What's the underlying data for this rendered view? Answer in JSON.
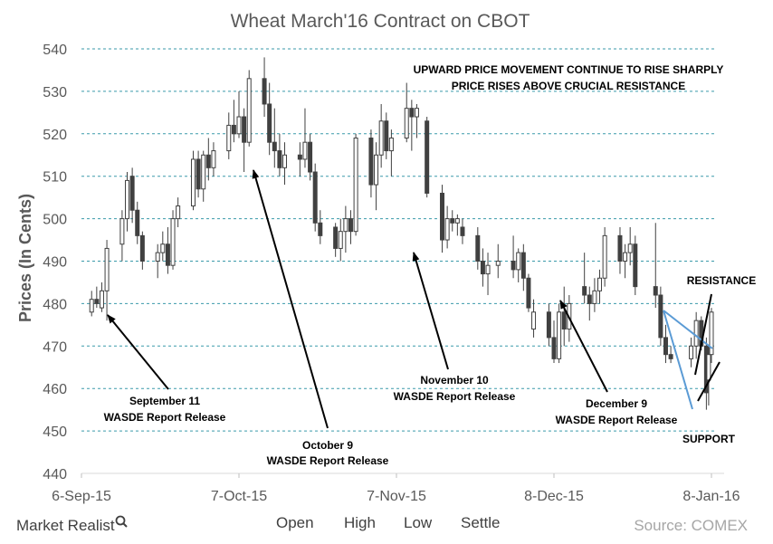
{
  "colors": {
    "grid": "#3a9aaa",
    "candle": "#404040",
    "trendline": "#5b9bd5",
    "arrow": "#000000",
    "axis_text": "#595959",
    "source_text": "#a6a6a6"
  },
  "footer": {
    "brand": "Market Realist",
    "brand_icon": "magnifier-icon",
    "source": "Source: COMEX"
  },
  "chart_data": {
    "type": "candlestick",
    "title": "Wheat March'16 Contract on CBOT",
    "xlabel": "",
    "ylabel": "Prices (In Cents)",
    "ylim": [
      440,
      540
    ],
    "yticks": [
      440,
      450,
      460,
      470,
      480,
      490,
      500,
      510,
      520,
      530,
      540
    ],
    "xlim": [
      "2015-09-06",
      "2016-01-08"
    ],
    "xticks": [
      {
        "date": "2015-09-06",
        "label": "6-Sep-15"
      },
      {
        "date": "2015-10-07",
        "label": "7-Oct-15"
      },
      {
        "date": "2015-11-07",
        "label": "7-Nov-15"
      },
      {
        "date": "2015-12-08",
        "label": "8-Dec-15"
      },
      {
        "date": "2016-01-08",
        "label": "8-Jan-16"
      }
    ],
    "grid": true,
    "legend": [
      "Open",
      "High",
      "Low",
      "Settle"
    ],
    "legend_position": "bottom",
    "candles": [
      {
        "date": "2015-09-08",
        "open": 478,
        "high": 483,
        "low": 477,
        "close": 481
      },
      {
        "date": "2015-09-09",
        "open": 481,
        "high": 484,
        "low": 479,
        "close": 480
      },
      {
        "date": "2015-09-10",
        "open": 479,
        "high": 485,
        "low": 478,
        "close": 483
      },
      {
        "date": "2015-09-11",
        "open": 483,
        "high": 495,
        "low": 476,
        "close": 493
      },
      {
        "date": "2015-09-14",
        "open": 494,
        "high": 502,
        "low": 490,
        "close": 500
      },
      {
        "date": "2015-09-15",
        "open": 500,
        "high": 511,
        "low": 497,
        "close": 509
      },
      {
        "date": "2015-09-16",
        "open": 510,
        "high": 512,
        "low": 499,
        "close": 502
      },
      {
        "date": "2015-09-17",
        "open": 502,
        "high": 504,
        "low": 494,
        "close": 496
      },
      {
        "date": "2015-09-18",
        "open": 496,
        "high": 497,
        "low": 488,
        "close": 490
      },
      {
        "date": "2015-09-21",
        "open": 490,
        "high": 494,
        "low": 486,
        "close": 492
      },
      {
        "date": "2015-09-22",
        "open": 492,
        "high": 497,
        "low": 490,
        "close": 494
      },
      {
        "date": "2015-09-23",
        "open": 494,
        "high": 498,
        "low": 487,
        "close": 489
      },
      {
        "date": "2015-09-24",
        "open": 489,
        "high": 502,
        "low": 488,
        "close": 500
      },
      {
        "date": "2015-09-25",
        "open": 500,
        "high": 505,
        "low": 498,
        "close": 503
      },
      {
        "date": "2015-09-28",
        "open": 503,
        "high": 516,
        "low": 502,
        "close": 514
      },
      {
        "date": "2015-09-29",
        "open": 514,
        "high": 516,
        "low": 505,
        "close": 507
      },
      {
        "date": "2015-09-30",
        "open": 507,
        "high": 516,
        "low": 504,
        "close": 515
      },
      {
        "date": "2015-10-01",
        "open": 515,
        "high": 519,
        "low": 509,
        "close": 512
      },
      {
        "date": "2015-10-02",
        "open": 512,
        "high": 518,
        "low": 510,
        "close": 516
      },
      {
        "date": "2015-10-05",
        "open": 516,
        "high": 525,
        "low": 514,
        "close": 522
      },
      {
        "date": "2015-10-06",
        "open": 522,
        "high": 528,
        "low": 518,
        "close": 520
      },
      {
        "date": "2015-10-07",
        "open": 520,
        "high": 530,
        "low": 519,
        "close": 524
      },
      {
        "date": "2015-10-08",
        "open": 524,
        "high": 526,
        "low": 511,
        "close": 518
      },
      {
        "date": "2015-10-09",
        "open": 518,
        "high": 535,
        "low": 517,
        "close": 533
      },
      {
        "date": "2015-10-12",
        "open": 533,
        "high": 538,
        "low": 524,
        "close": 527
      },
      {
        "date": "2015-10-13",
        "open": 527,
        "high": 532,
        "low": 515,
        "close": 518
      },
      {
        "date": "2015-10-14",
        "open": 518,
        "high": 526,
        "low": 512,
        "close": 516
      },
      {
        "date": "2015-10-15",
        "open": 516,
        "high": 520,
        "low": 510,
        "close": 512
      },
      {
        "date": "2015-10-16",
        "open": 512,
        "high": 518,
        "low": 508,
        "close": 515
      },
      {
        "date": "2015-10-19",
        "open": 515,
        "high": 518,
        "low": 510,
        "close": 514
      },
      {
        "date": "2015-10-20",
        "open": 514,
        "high": 526,
        "low": 512,
        "close": 518
      },
      {
        "date": "2015-10-21",
        "open": 518,
        "high": 520,
        "low": 509,
        "close": 511
      },
      {
        "date": "2015-10-22",
        "open": 511,
        "high": 513,
        "low": 497,
        "close": 499
      },
      {
        "date": "2015-10-23",
        "open": 499,
        "high": 502,
        "low": 494,
        "close": 496
      },
      {
        "date": "2015-10-26",
        "open": 498,
        "high": 499,
        "low": 491,
        "close": 493
      },
      {
        "date": "2015-10-27",
        "open": 493,
        "high": 500,
        "low": 490,
        "close": 497
      },
      {
        "date": "2015-10-28",
        "open": 497,
        "high": 503,
        "low": 492,
        "close": 500
      },
      {
        "date": "2015-10-29",
        "open": 500,
        "high": 502,
        "low": 494,
        "close": 497
      },
      {
        "date": "2015-10-30",
        "open": 497,
        "high": 520,
        "low": 496,
        "close": 519
      },
      {
        "date": "2015-11-02",
        "open": 519,
        "high": 521,
        "low": 505,
        "close": 508
      },
      {
        "date": "2015-11-03",
        "open": 508,
        "high": 518,
        "low": 502,
        "close": 515
      },
      {
        "date": "2015-11-04",
        "open": 515,
        "high": 527,
        "low": 512,
        "close": 523
      },
      {
        "date": "2015-11-05",
        "open": 523,
        "high": 525,
        "low": 514,
        "close": 516
      },
      {
        "date": "2015-11-06",
        "open": 516,
        "high": 521,
        "low": 510,
        "close": 519
      },
      {
        "date": "2015-11-09",
        "open": 519,
        "high": 532,
        "low": 518,
        "close": 526
      },
      {
        "date": "2015-11-10",
        "open": 526,
        "high": 528,
        "low": 516,
        "close": 524
      },
      {
        "date": "2015-11-11",
        "open": 524,
        "high": 527,
        "low": 519,
        "close": 526
      },
      {
        "date": "2015-11-13",
        "open": 523,
        "high": 524,
        "low": 505,
        "close": 506
      },
      {
        "date": "2015-11-16",
        "open": 506,
        "high": 508,
        "low": 492,
        "close": 495
      },
      {
        "date": "2015-11-17",
        "open": 495,
        "high": 503,
        "low": 493,
        "close": 500
      },
      {
        "date": "2015-11-18",
        "open": 500,
        "high": 502,
        "low": 497,
        "close": 499
      },
      {
        "date": "2015-11-19",
        "open": 499,
        "high": 501,
        "low": 496,
        "close": 500
      },
      {
        "date": "2015-11-20",
        "open": 498,
        "high": 500,
        "low": 494,
        "close": 496
      },
      {
        "date": "2015-11-23",
        "open": 496,
        "high": 498,
        "low": 488,
        "close": 490
      },
      {
        "date": "2015-11-24",
        "open": 490,
        "high": 493,
        "low": 484,
        "close": 487
      },
      {
        "date": "2015-11-25",
        "open": 487,
        "high": 492,
        "low": 482,
        "close": 489
      },
      {
        "date": "2015-11-27",
        "open": 489,
        "high": 494,
        "low": 486,
        "close": 490
      },
      {
        "date": "2015-11-30",
        "open": 490,
        "high": 496,
        "low": 486,
        "close": 488
      },
      {
        "date": "2015-12-01",
        "open": 488,
        "high": 493,
        "low": 485,
        "close": 492
      },
      {
        "date": "2015-12-02",
        "open": 492,
        "high": 494,
        "low": 483,
        "close": 486
      },
      {
        "date": "2015-12-03",
        "open": 486,
        "high": 487,
        "low": 478,
        "close": 479
      },
      {
        "date": "2015-12-04",
        "open": 474,
        "high": 481,
        "low": 472,
        "close": 478
      },
      {
        "date": "2015-12-07",
        "open": 478,
        "high": 480,
        "low": 470,
        "close": 472
      },
      {
        "date": "2015-12-08",
        "open": 472,
        "high": 476,
        "low": 466,
        "close": 467
      },
      {
        "date": "2015-12-09",
        "open": 467,
        "high": 480,
        "low": 466,
        "close": 478
      },
      {
        "date": "2015-12-10",
        "open": 478,
        "high": 484,
        "low": 470,
        "close": 474
      },
      {
        "date": "2015-12-11",
        "open": 474,
        "high": 482,
        "low": 471,
        "close": 480
      },
      {
        "date": "2015-12-14",
        "open": 484,
        "high": 492,
        "low": 480,
        "close": 482
      },
      {
        "date": "2015-12-15",
        "open": 482,
        "high": 484,
        "low": 476,
        "close": 480
      },
      {
        "date": "2015-12-16",
        "open": 480,
        "high": 486,
        "low": 478,
        "close": 483
      },
      {
        "date": "2015-12-17",
        "open": 483,
        "high": 488,
        "low": 480,
        "close": 486
      },
      {
        "date": "2015-12-18",
        "open": 486,
        "high": 498,
        "low": 484,
        "close": 496
      },
      {
        "date": "2015-12-21",
        "open": 496,
        "high": 498,
        "low": 487,
        "close": 490
      },
      {
        "date": "2015-12-22",
        "open": 490,
        "high": 494,
        "low": 486,
        "close": 492
      },
      {
        "date": "2015-12-23",
        "open": 492,
        "high": 498,
        "low": 489,
        "close": 494
      },
      {
        "date": "2015-12-24",
        "open": 494,
        "high": 496,
        "low": 482,
        "close": 484
      },
      {
        "date": "2015-12-28",
        "open": 484,
        "high": 499,
        "low": 479,
        "close": 482
      },
      {
        "date": "2015-12-29",
        "open": 482,
        "high": 484,
        "low": 470,
        "close": 472
      },
      {
        "date": "2015-12-30",
        "open": 472,
        "high": 475,
        "low": 466,
        "close": 468
      },
      {
        "date": "2015-12-31",
        "open": 468,
        "high": 470,
        "low": 466,
        "close": 467
      },
      {
        "date": "2016-01-04",
        "open": 467,
        "high": 472,
        "low": 465,
        "close": 470
      },
      {
        "date": "2016-01-05",
        "open": 470,
        "high": 478,
        "low": 467,
        "close": 476
      },
      {
        "date": "2016-01-06",
        "open": 476,
        "high": 477,
        "low": 469,
        "close": 470
      },
      {
        "date": "2016-01-07",
        "open": 470,
        "high": 472,
        "low": 455,
        "close": 459
      },
      {
        "date": "2016-01-07b",
        "open": 462,
        "high": 470,
        "low": 456,
        "close": 468
      },
      {
        "date": "2016-01-08",
        "open": 468,
        "high": 479,
        "low": 466,
        "close": 478
      }
    ],
    "annotations": [
      {
        "id": "headline",
        "lines": [
          "UPWARD PRICE MOVEMENT CONTINUE TO RISE SHARPLY",
          "PRICE RISES ABOVE CRUCIAL RESISTANCE"
        ]
      },
      {
        "id": "sep11",
        "lines": [
          "September 11",
          "WASDE Report Release"
        ],
        "target": {
          "date": "2015-09-11",
          "price": 476
        }
      },
      {
        "id": "oct9",
        "lines": [
          "October 9",
          "WASDE Report Release"
        ],
        "target": {
          "date": "2015-10-09",
          "price": 511
        }
      },
      {
        "id": "nov10",
        "lines": [
          "November 10",
          "WASDE Report Release"
        ],
        "target": {
          "date": "2015-11-13",
          "price": 492
        }
      },
      {
        "id": "dec9",
        "lines": [
          "December 9",
          "WASDE Report Release"
        ],
        "target": {
          "date": "2015-12-09",
          "price": 481
        }
      },
      {
        "id": "resistance",
        "lines": [
          "RESISTANCE"
        ]
      },
      {
        "id": "support",
        "lines": [
          "SUPPORT"
        ]
      }
    ]
  }
}
